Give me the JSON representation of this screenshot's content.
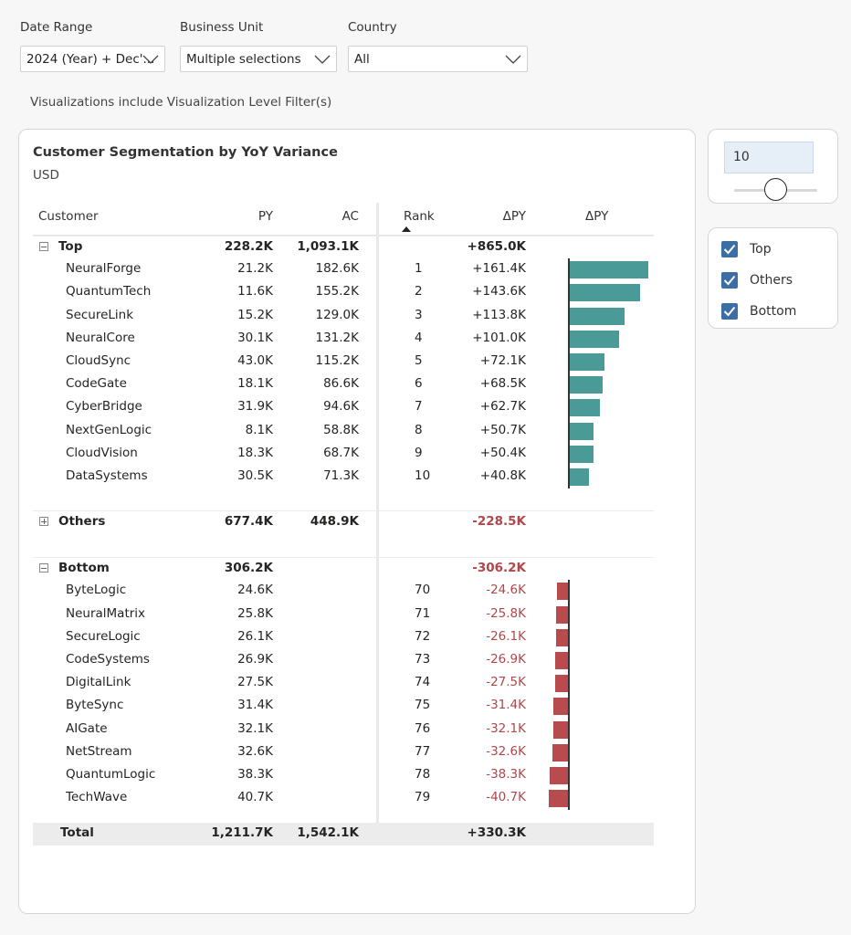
{
  "filters": [
    {
      "label": "Date Range",
      "value": "2024 (Year) + Dec'..."
    },
    {
      "label": "Business Unit",
      "value": "Multiple selections"
    },
    {
      "label": "Country",
      "value": "All"
    }
  ],
  "vis_note": "Visualizations include Visualization Level Filter(s)",
  "card": {
    "title": "Customer Segmentation by YoY Variance",
    "subtitle": "USD"
  },
  "table": {
    "headers": {
      "customer": "Customer",
      "py": "PY",
      "ac": "AC",
      "rank": "Rank",
      "dpy": "ΔPY",
      "dpy_bar": "ΔPY"
    },
    "top": {
      "label": "Top",
      "py": "228.2K",
      "ac": "1,093.1K",
      "dpy": "+865.0K",
      "rows": [
        {
          "name": "NeuralForge",
          "py": "21.2K",
          "ac": "182.6K",
          "rank": "1",
          "dpy": "+161.4K",
          "v": 161.4
        },
        {
          "name": "QuantumTech",
          "py": "11.6K",
          "ac": "155.2K",
          "rank": "2",
          "dpy": "+143.6K",
          "v": 143.6
        },
        {
          "name": "SecureLink",
          "py": "15.2K",
          "ac": "129.0K",
          "rank": "3",
          "dpy": "+113.8K",
          "v": 113.8
        },
        {
          "name": "NeuralCore",
          "py": "30.1K",
          "ac": "131.2K",
          "rank": "4",
          "dpy": "+101.0K",
          "v": 101.0
        },
        {
          "name": "CloudSync",
          "py": "43.0K",
          "ac": "115.2K",
          "rank": "5",
          "dpy": "+72.1K",
          "v": 72.1
        },
        {
          "name": "CodeGate",
          "py": "18.1K",
          "ac": "86.6K",
          "rank": "6",
          "dpy": "+68.5K",
          "v": 68.5
        },
        {
          "name": "CyberBridge",
          "py": "31.9K",
          "ac": "94.6K",
          "rank": "7",
          "dpy": "+62.7K",
          "v": 62.7
        },
        {
          "name": "NextGenLogic",
          "py": "8.1K",
          "ac": "58.8K",
          "rank": "8",
          "dpy": "+50.7K",
          "v": 50.7
        },
        {
          "name": "CloudVision",
          "py": "18.3K",
          "ac": "68.7K",
          "rank": "9",
          "dpy": "+50.4K",
          "v": 50.4
        },
        {
          "name": "DataSystems",
          "py": "30.5K",
          "ac": "71.3K",
          "rank": "10",
          "dpy": "+40.8K",
          "v": 40.8
        }
      ]
    },
    "others": {
      "label": "Others",
      "py": "677.4K",
      "ac": "448.9K",
      "dpy": "-228.5K"
    },
    "bottom": {
      "label": "Bottom",
      "py": "306.2K",
      "dpy": "-306.2K",
      "rows": [
        {
          "name": "ByteLogic",
          "py": "24.6K",
          "rank": "70",
          "dpy": "-24.6K",
          "v": -24.6
        },
        {
          "name": "NeuralMatrix",
          "py": "25.8K",
          "rank": "71",
          "dpy": "-25.8K",
          "v": -25.8
        },
        {
          "name": "SecureLogic",
          "py": "26.1K",
          "rank": "72",
          "dpy": "-26.1K",
          "v": -26.1
        },
        {
          "name": "CodeSystems",
          "py": "26.9K",
          "rank": "73",
          "dpy": "-26.9K",
          "v": -26.9
        },
        {
          "name": "DigitalLink",
          "py": "27.5K",
          "rank": "74",
          "dpy": "-27.5K",
          "v": -27.5
        },
        {
          "name": "ByteSync",
          "py": "31.4K",
          "rank": "75",
          "dpy": "-31.4K",
          "v": -31.4
        },
        {
          "name": "AIGate",
          "py": "32.1K",
          "rank": "76",
          "dpy": "-32.1K",
          "v": -32.1
        },
        {
          "name": "NetStream",
          "py": "32.6K",
          "rank": "77",
          "dpy": "-32.6K",
          "v": -32.6
        },
        {
          "name": "QuantumLogic",
          "py": "38.3K",
          "rank": "78",
          "dpy": "-38.3K",
          "v": -38.3
        },
        {
          "name": "TechWave",
          "py": "40.7K",
          "rank": "79",
          "dpy": "-40.7K",
          "v": -40.7
        }
      ]
    },
    "total": {
      "label": "Total",
      "py": "1,211.7K",
      "ac": "1,542.1K",
      "dpy": "+330.3K"
    }
  },
  "colors": {
    "positive": "#4a9b98",
    "negative": "#b94a4e"
  },
  "slider": {
    "value": "10"
  },
  "segments": [
    {
      "label": "Top",
      "checked": true
    },
    {
      "label": "Others",
      "checked": true
    },
    {
      "label": "Bottom",
      "checked": true
    }
  ]
}
